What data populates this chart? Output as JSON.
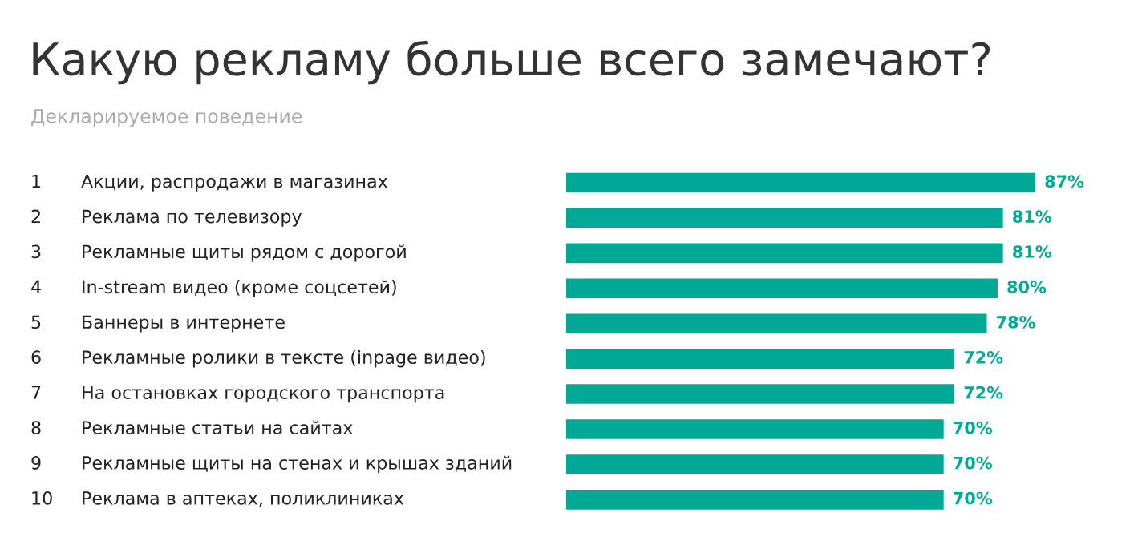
{
  "chart_data": {
    "type": "bar",
    "orientation": "horizontal",
    "title": "Какую рекламу больше всего замечают?",
    "subtitle": "Декларируемое поведение",
    "categories": [
      "Акции, распродажи в магазинах",
      "Реклама по телевизору",
      "Рекламные щиты рядом с дорогой",
      "In-stream видео (кроме соцсетей)",
      "Баннеры в интернете",
      "Рекламные ролики в тексте (inpage видео)",
      "На остановках городского транспорта",
      "Рекламные статьи на сайтах",
      "Рекламные щиты на стенах и крышах зданий",
      "Реклама в аптеках, поликлиниках"
    ],
    "annotations": [
      "1",
      "2",
      "3",
      "4",
      "5",
      "6",
      "7",
      "8",
      "9",
      "10"
    ],
    "values": [
      87,
      81,
      81,
      80,
      78,
      72,
      72,
      70,
      70,
      70
    ],
    "value_labels": [
      "87%",
      "81%",
      "81%",
      "80%",
      "78%",
      "72%",
      "72%",
      "70%",
      "70%",
      "70%"
    ],
    "color": "#00a896"
  }
}
